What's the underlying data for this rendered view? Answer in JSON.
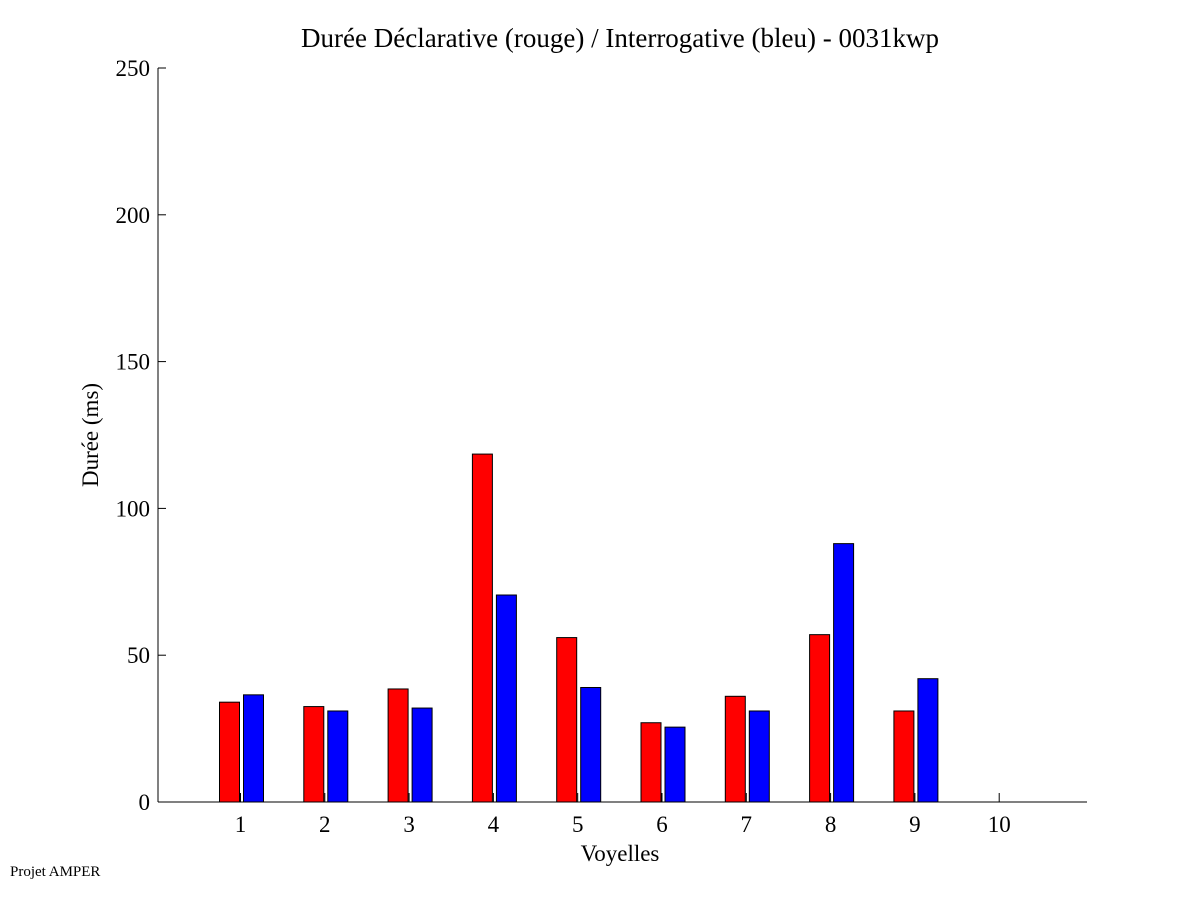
{
  "chart_data": {
    "type": "bar",
    "title": "Durée Déclarative (rouge) / Interrogative (bleu) - 0031kwp",
    "xlabel": "Voyelles",
    "ylabel": "Durée (ms)",
    "categories": [
      "1",
      "2",
      "3",
      "4",
      "5",
      "6",
      "7",
      "8",
      "9",
      "10"
    ],
    "ylim": [
      0,
      250
    ],
    "yticks": [
      "0",
      "50",
      "100",
      "150",
      "200",
      "250"
    ],
    "grid": false,
    "series": [
      {
        "color": "#ff0000",
        "values": [
          34,
          32.5,
          38.5,
          118.5,
          56,
          27,
          36,
          57,
          31,
          null
        ]
      },
      {
        "color": "#0000ff",
        "values": [
          36.5,
          31,
          32,
          70.5,
          39,
          25.5,
          31,
          88,
          42,
          null
        ]
      }
    ]
  },
  "footer": {
    "label": "Projet AMPER"
  }
}
